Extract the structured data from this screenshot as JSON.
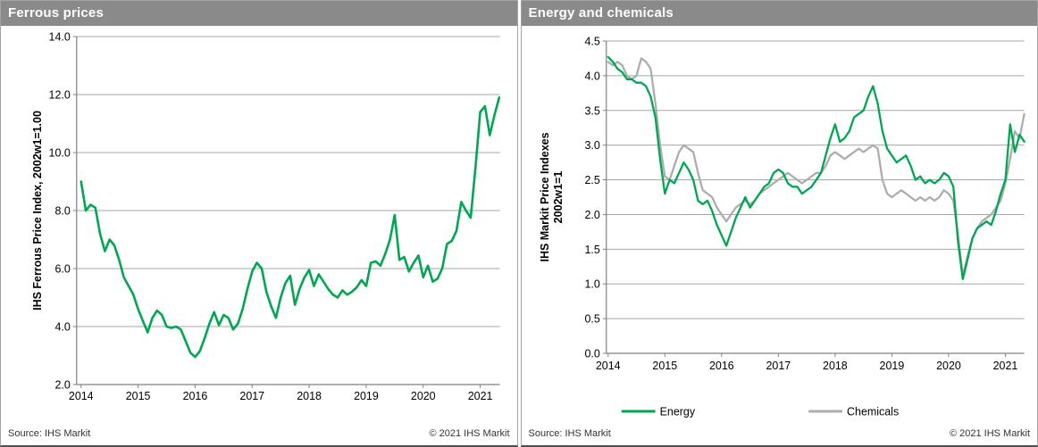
{
  "panels": [
    {
      "title": "Ferrous prices",
      "source": "Source:  IHS Markit",
      "copyright": "© 2021  IHS Markit"
    },
    {
      "title": "Energy and chemicals",
      "source": "Source:  IHS Markit",
      "copyright": "© 2021  IHS Markit"
    }
  ],
  "colors": {
    "green": "#00A651",
    "gray_line": "#ADADAD",
    "header_gray": "#8A8A8A",
    "gridline": "#A6A6A6",
    "axis": "#808080"
  },
  "chart_data": [
    {
      "type": "line",
      "title": "Ferrous prices",
      "ylabel": "IHS Ferrous Price Index, 2002w1=1.00",
      "xlabel": "",
      "ylim": [
        2.0,
        14.0
      ],
      "ytick_step": 2.0,
      "ytick_decimals": 1,
      "grid": true,
      "legend_position": "none",
      "x_start_year": 2014,
      "points_per_year": 12,
      "xtick_labels": [
        "2014",
        "2015",
        "2016",
        "2017",
        "2018",
        "2019",
        "2020",
        "2021"
      ],
      "series": [
        {
          "name": "Ferrous",
          "color": "#00A651",
          "values": [
            9.0,
            8.0,
            8.2,
            8.1,
            7.2,
            6.6,
            7.0,
            6.8,
            6.3,
            5.7,
            5.4,
            5.1,
            4.6,
            4.2,
            3.8,
            4.3,
            4.55,
            4.4,
            4.0,
            3.95,
            4.0,
            3.9,
            3.5,
            3.1,
            2.95,
            3.15,
            3.6,
            4.1,
            4.5,
            4.05,
            4.4,
            4.3,
            3.9,
            4.1,
            4.6,
            5.3,
            5.9,
            6.2,
            6.0,
            5.2,
            4.7,
            4.3,
            5.0,
            5.5,
            5.75,
            4.75,
            5.3,
            5.7,
            5.95,
            5.4,
            5.8,
            5.55,
            5.3,
            5.1,
            5.0,
            5.25,
            5.1,
            5.2,
            5.35,
            5.6,
            5.4,
            6.2,
            6.25,
            6.1,
            6.5,
            7.0,
            7.85,
            6.3,
            6.4,
            5.9,
            6.2,
            6.45,
            5.7,
            6.1,
            5.55,
            5.65,
            6.0,
            6.85,
            6.95,
            7.3,
            8.3,
            8.0,
            7.75,
            9.5,
            11.4,
            11.6,
            10.6,
            11.3,
            11.9
          ]
        }
      ]
    },
    {
      "type": "line",
      "title": "Energy and chemicals",
      "ylabel": [
        "IHS Markit Price Indexes",
        "2002w1=1"
      ],
      "xlabel": "",
      "ylim": [
        0.0,
        4.5
      ],
      "ytick_step": 0.5,
      "ytick_decimals": 1,
      "grid": true,
      "legend_position": "bottom",
      "x_start_year": 2014,
      "points_per_year": 12,
      "xtick_labels": [
        "2014",
        "2015",
        "2016",
        "2017",
        "2018",
        "2019",
        "2020",
        "2021"
      ],
      "series": [
        {
          "name": "Energy",
          "color": "#00A651",
          "values": [
            4.27,
            4.2,
            4.1,
            4.05,
            3.95,
            3.95,
            3.9,
            3.9,
            3.85,
            3.7,
            3.4,
            2.8,
            2.3,
            2.5,
            2.45,
            2.6,
            2.75,
            2.65,
            2.5,
            2.2,
            2.15,
            2.2,
            2.05,
            1.85,
            1.7,
            1.55,
            1.75,
            1.95,
            2.1,
            2.25,
            2.1,
            2.2,
            2.3,
            2.4,
            2.45,
            2.6,
            2.65,
            2.6,
            2.45,
            2.4,
            2.4,
            2.3,
            2.35,
            2.4,
            2.5,
            2.6,
            2.85,
            3.1,
            3.3,
            3.05,
            3.1,
            3.2,
            3.4,
            3.45,
            3.5,
            3.7,
            3.85,
            3.6,
            3.2,
            2.95,
            2.85,
            2.75,
            2.8,
            2.85,
            2.7,
            2.5,
            2.55,
            2.45,
            2.5,
            2.45,
            2.5,
            2.6,
            2.55,
            2.4,
            1.6,
            1.07,
            1.35,
            1.65,
            1.8,
            1.85,
            1.9,
            1.85,
            2.05,
            2.3,
            2.5,
            3.3,
            2.9,
            3.15,
            3.05
          ]
        },
        {
          "name": "Chemicals",
          "color": "#ADADAD",
          "values": [
            4.2,
            4.15,
            4.2,
            4.15,
            4.0,
            3.95,
            4.0,
            4.25,
            4.2,
            4.1,
            3.6,
            3.0,
            2.55,
            2.5,
            2.7,
            2.9,
            3.0,
            2.95,
            2.9,
            2.6,
            2.35,
            2.3,
            2.25,
            2.1,
            2.0,
            1.9,
            2.0,
            2.1,
            2.15,
            2.2,
            2.15,
            2.2,
            2.3,
            2.35,
            2.4,
            2.45,
            2.5,
            2.55,
            2.6,
            2.55,
            2.5,
            2.45,
            2.5,
            2.55,
            2.6,
            2.6,
            2.7,
            2.85,
            2.9,
            2.85,
            2.8,
            2.85,
            2.9,
            2.95,
            2.9,
            2.95,
            3.0,
            2.95,
            2.5,
            2.3,
            2.25,
            2.3,
            2.35,
            2.3,
            2.25,
            2.2,
            2.25,
            2.2,
            2.25,
            2.2,
            2.25,
            2.35,
            2.3,
            2.2,
            1.7,
            1.12,
            1.4,
            1.65,
            1.8,
            1.9,
            1.95,
            2.0,
            2.1,
            2.2,
            2.45,
            2.8,
            3.2,
            3.1,
            3.45
          ]
        }
      ]
    }
  ]
}
